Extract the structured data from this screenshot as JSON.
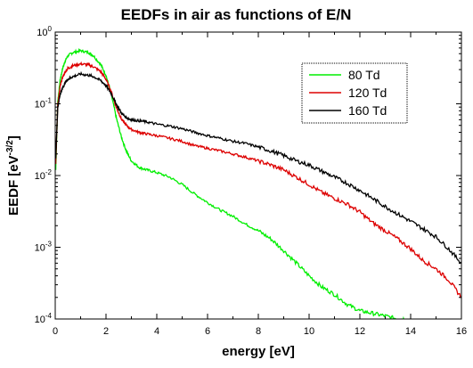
{
  "chart_data": {
    "type": "line",
    "title": "EEDFs in air as functions of E/N",
    "xlabel": "energy [eV]",
    "ylabel": "EEDF [eV⁻³ᐟ²]",
    "ylabel_parts": {
      "base": "EEDF [eV",
      "exp": "-3/2",
      "close": "]"
    },
    "xlim": [
      0,
      16
    ],
    "ylim": [
      0.0001,
      1
    ],
    "yscale": "log",
    "grid": false,
    "legend_position": "top-right",
    "x_ticks": [
      0,
      2,
      4,
      6,
      8,
      10,
      12,
      14,
      16
    ],
    "x_tick_labels": [
      "0",
      "2",
      "4",
      "6",
      "8",
      "10",
      "12",
      "14",
      "16"
    ],
    "y_ticks": [
      0.0001,
      0.001,
      0.01,
      0.1,
      1
    ],
    "y_tick_labels": [
      {
        "base": "10",
        "exp": "-4"
      },
      {
        "base": "10",
        "exp": "-3"
      },
      {
        "base": "10",
        "exp": "-2"
      },
      {
        "base": "10",
        "exp": "-1"
      },
      {
        "base": "10",
        "exp": "0"
      }
    ],
    "series": [
      {
        "name": "80 Td",
        "color": "#00ee00",
        "x": [
          0.02,
          0.1,
          0.2,
          0.3,
          0.4,
          0.5,
          0.7,
          1.0,
          1.3,
          1.5,
          1.8,
          2.0,
          2.2,
          2.4,
          2.6,
          2.8,
          3.0,
          3.3,
          3.6,
          4.0,
          4.5,
          5.0,
          5.5,
          6.0,
          6.5,
          7.0,
          7.5,
          8.0,
          8.5,
          9.0,
          9.5,
          10.0,
          10.5,
          11.0,
          11.5,
          12.0,
          12.5,
          13.0,
          13.5,
          13.8
        ],
        "y": [
          0.012,
          0.11,
          0.22,
          0.32,
          0.4,
          0.47,
          0.52,
          0.55,
          0.52,
          0.47,
          0.35,
          0.25,
          0.14,
          0.065,
          0.035,
          0.022,
          0.016,
          0.013,
          0.012,
          0.011,
          0.0095,
          0.0075,
          0.0055,
          0.0042,
          0.0033,
          0.0027,
          0.0021,
          0.0017,
          0.0013,
          0.0009,
          0.0006,
          0.0004,
          0.00028,
          0.00022,
          0.00016,
          0.00013,
          0.00012,
          0.00011,
          0.0001,
          0.0001
        ]
      },
      {
        "name": "120 Td",
        "color": "#dd0000",
        "x": [
          0.02,
          0.1,
          0.2,
          0.3,
          0.4,
          0.5,
          0.7,
          1.0,
          1.3,
          1.5,
          1.8,
          2.0,
          2.2,
          2.4,
          2.6,
          2.8,
          3.0,
          3.3,
          3.6,
          4.0,
          4.5,
          5.0,
          5.5,
          6.0,
          6.5,
          7.0,
          7.5,
          8.0,
          8.5,
          9.0,
          9.5,
          10.0,
          10.5,
          11.0,
          11.5,
          12.0,
          12.5,
          13.0,
          13.5,
          14.0,
          14.5,
          15.0,
          15.5,
          16.0
        ],
        "y": [
          0.015,
          0.1,
          0.18,
          0.24,
          0.28,
          0.31,
          0.34,
          0.36,
          0.35,
          0.33,
          0.28,
          0.22,
          0.15,
          0.09,
          0.062,
          0.05,
          0.044,
          0.04,
          0.038,
          0.036,
          0.033,
          0.03,
          0.026,
          0.024,
          0.022,
          0.02,
          0.018,
          0.016,
          0.014,
          0.012,
          0.0095,
          0.0075,
          0.0058,
          0.0048,
          0.004,
          0.0031,
          0.0022,
          0.0017,
          0.0013,
          0.00095,
          0.00065,
          0.0005,
          0.00035,
          0.0002
        ]
      },
      {
        "name": "160 Td",
        "color": "#000000",
        "x": [
          0.02,
          0.1,
          0.2,
          0.3,
          0.4,
          0.5,
          0.7,
          1.0,
          1.3,
          1.5,
          1.8,
          2.0,
          2.2,
          2.4,
          2.6,
          2.8,
          3.0,
          3.3,
          3.6,
          4.0,
          4.5,
          5.0,
          5.5,
          6.0,
          6.5,
          7.0,
          7.5,
          8.0,
          8.5,
          9.0,
          9.5,
          10.0,
          10.5,
          11.0,
          11.5,
          12.0,
          12.5,
          13.0,
          13.5,
          14.0,
          14.5,
          15.0,
          15.5,
          16.0
        ],
        "y": [
          0.018,
          0.09,
          0.14,
          0.17,
          0.2,
          0.22,
          0.24,
          0.26,
          0.25,
          0.24,
          0.21,
          0.18,
          0.14,
          0.1,
          0.075,
          0.064,
          0.06,
          0.058,
          0.056,
          0.052,
          0.049,
          0.045,
          0.04,
          0.036,
          0.033,
          0.03,
          0.028,
          0.025,
          0.022,
          0.019,
          0.016,
          0.014,
          0.0115,
          0.0095,
          0.0078,
          0.0062,
          0.0048,
          0.0037,
          0.0029,
          0.0023,
          0.0018,
          0.0014,
          0.00095,
          0.0006
        ]
      }
    ]
  }
}
